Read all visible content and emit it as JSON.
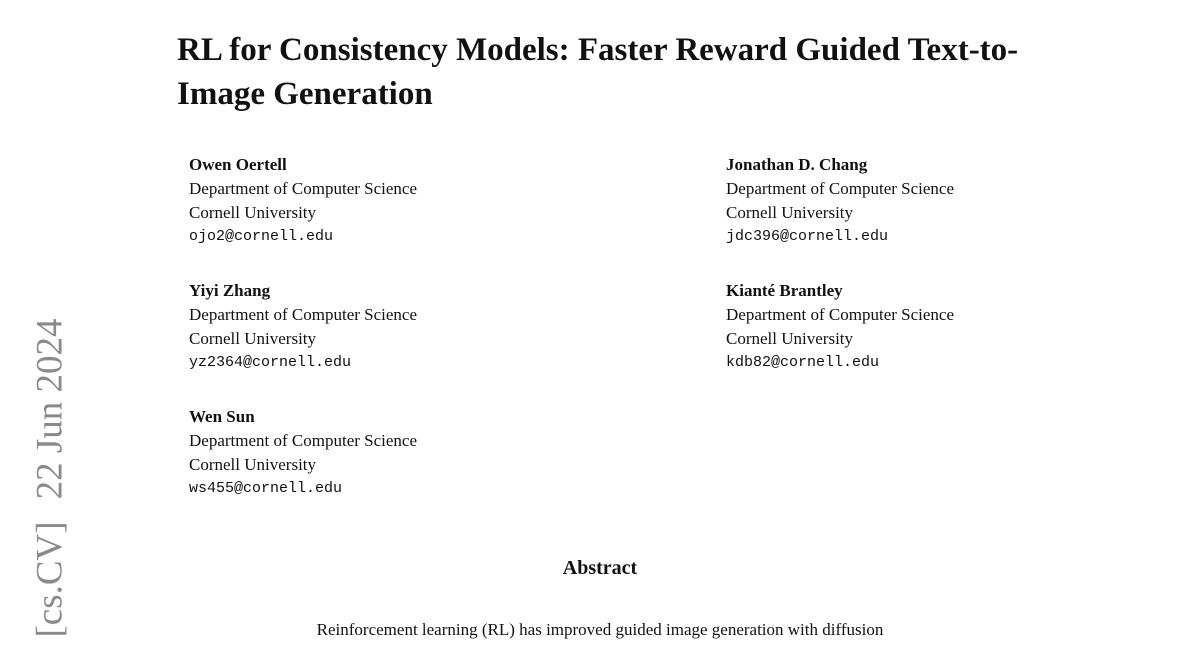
{
  "arxiv_stamp": {
    "category": "[cs.CV]",
    "date": "22 Jun 2024"
  },
  "title": "RL for Consistency Models: Faster Reward Guided Text-to-Image Generation",
  "authors": [
    {
      "name": "Owen Oertell",
      "department": "Department of Computer Science",
      "affiliation": "Cornell University",
      "email": "ojo2@cornell.edu"
    },
    {
      "name": "Jonathan D. Chang",
      "department": "Department of Computer Science",
      "affiliation": "Cornell University",
      "email": "jdc396@cornell.edu"
    },
    {
      "name": "Yiyi Zhang",
      "department": "Department of Computer Science",
      "affiliation": "Cornell University",
      "email": "yz2364@cornell.edu"
    },
    {
      "name": "Kianté Brantley",
      "department": "Department of Computer Science",
      "affiliation": "Cornell University",
      "email": "kdb82@cornell.edu"
    },
    {
      "name": "Wen Sun",
      "department": "Department of Computer Science",
      "affiliation": "Cornell University",
      "email": "ws455@cornell.edu"
    }
  ],
  "abstract": {
    "heading": "Abstract",
    "text": "Reinforcement learning (RL) has improved guided image generation with diffusion"
  }
}
